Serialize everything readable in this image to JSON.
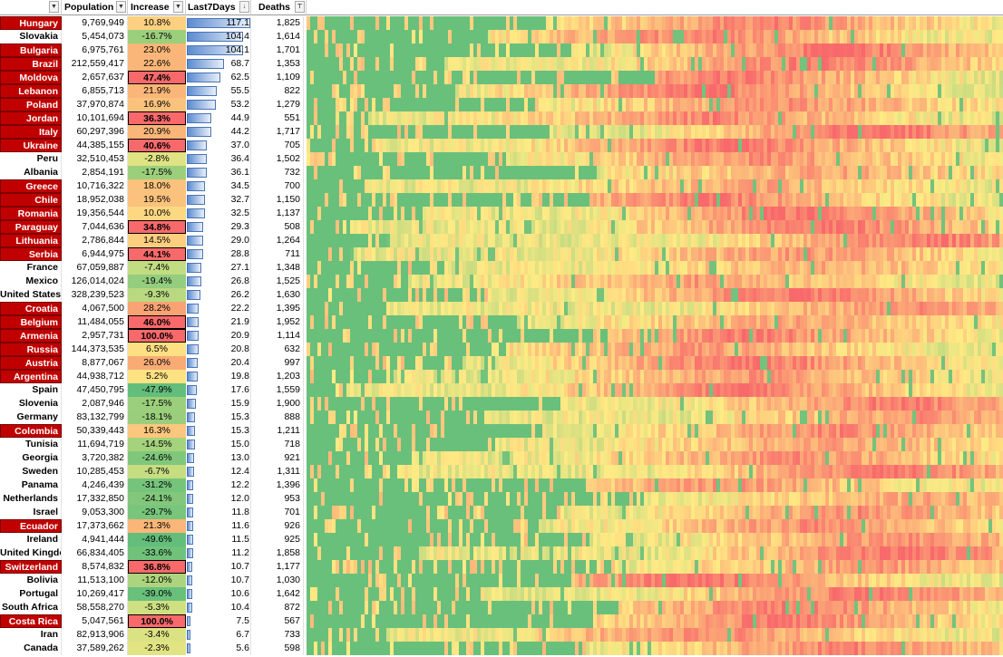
{
  "headers": {
    "country": "",
    "population": "Population",
    "increase": "Increase",
    "last7days": "Last7Days",
    "deaths": "Deaths"
  },
  "colors": {
    "highlight_red": "#c00000",
    "heat_green": "#63be7b",
    "heat_yellow": "#ffeb84",
    "heat_red": "#f8696b"
  },
  "rows": [
    {
      "country": "Hungary",
      "population": "9,769,949",
      "increase": "10.8%",
      "last7": "117.1",
      "deaths": "1,825",
      "highlight": true,
      "boxed": false,
      "inc_color": "#fbd080",
      "bar_frac": 1.0
    },
    {
      "country": "Slovakia",
      "population": "5,454,073",
      "increase": "-16.7%",
      "last7": "104.4",
      "deaths": "1,614",
      "highlight": false,
      "boxed": false,
      "inc_color": "#9ccf7c",
      "bar_frac": 0.89
    },
    {
      "country": "Bulgaria",
      "population": "6,975,761",
      "increase": "23.0%",
      "last7": "104.1",
      "deaths": "1,701",
      "highlight": true,
      "boxed": false,
      "inc_color": "#f9b678",
      "bar_frac": 0.89
    },
    {
      "country": "Brazil",
      "population": "212,559,417",
      "increase": "22.6%",
      "last7": "68.7",
      "deaths": "1,353",
      "highlight": true,
      "boxed": false,
      "inc_color": "#f9b678",
      "bar_frac": 0.59
    },
    {
      "country": "Moldova",
      "population": "2,657,637",
      "increase": "47.4%",
      "last7": "62.5",
      "deaths": "1,109",
      "highlight": true,
      "boxed": true,
      "inc_color": "#f8696b",
      "bar_frac": 0.53
    },
    {
      "country": "Lebanon",
      "population": "6,855,713",
      "increase": "21.9%",
      "last7": "55.5",
      "deaths": "822",
      "highlight": true,
      "boxed": false,
      "inc_color": "#f9b678",
      "bar_frac": 0.47
    },
    {
      "country": "Poland",
      "population": "37,970,874",
      "increase": "16.9%",
      "last7": "53.2",
      "deaths": "1,279",
      "highlight": true,
      "boxed": false,
      "inc_color": "#fac27c",
      "bar_frac": 0.45
    },
    {
      "country": "Jordan",
      "population": "10,101,694",
      "increase": "36.3%",
      "last7": "44.9",
      "deaths": "551",
      "highlight": true,
      "boxed": true,
      "inc_color": "#f8696b",
      "bar_frac": 0.38
    },
    {
      "country": "Italy",
      "population": "60,297,396",
      "increase": "20.9%",
      "last7": "44.2",
      "deaths": "1,717",
      "highlight": true,
      "boxed": false,
      "inc_color": "#f9b678",
      "bar_frac": 0.38
    },
    {
      "country": "Ukraine",
      "population": "44,385,155",
      "increase": "40.6%",
      "last7": "37.0",
      "deaths": "705",
      "highlight": true,
      "boxed": true,
      "inc_color": "#f8696b",
      "bar_frac": 0.32
    },
    {
      "country": "Peru",
      "population": "32,510,453",
      "increase": "-2.8%",
      "last7": "36.4",
      "deaths": "1,502",
      "highlight": false,
      "boxed": false,
      "inc_color": "#dfe383",
      "bar_frac": 0.31
    },
    {
      "country": "Albania",
      "population": "2,854,191",
      "increase": "-17.5%",
      "last7": "36.1",
      "deaths": "732",
      "highlight": false,
      "boxed": false,
      "inc_color": "#9ccf7c",
      "bar_frac": 0.31
    },
    {
      "country": "Greece",
      "population": "10,716,322",
      "increase": "18.0%",
      "last7": "34.5",
      "deaths": "700",
      "highlight": true,
      "boxed": false,
      "inc_color": "#fac27c",
      "bar_frac": 0.29
    },
    {
      "country": "Chile",
      "population": "18,952,038",
      "increase": "19.5%",
      "last7": "32.7",
      "deaths": "1,150",
      "highlight": true,
      "boxed": false,
      "inc_color": "#fac27c",
      "bar_frac": 0.28
    },
    {
      "country": "Romania",
      "population": "19,356,544",
      "increase": "10.0%",
      "last7": "32.5",
      "deaths": "1,137",
      "highlight": true,
      "boxed": false,
      "inc_color": "#fcd882",
      "bar_frac": 0.28
    },
    {
      "country": "Paraguay",
      "population": "7,044,636",
      "increase": "34.8%",
      "last7": "29.3",
      "deaths": "508",
      "highlight": true,
      "boxed": true,
      "inc_color": "#f8696b",
      "bar_frac": 0.25
    },
    {
      "country": "Lithuania",
      "population": "2,786,844",
      "increase": "14.5%",
      "last7": "29.0",
      "deaths": "1,264",
      "highlight": true,
      "boxed": false,
      "inc_color": "#fbce80",
      "bar_frac": 0.25
    },
    {
      "country": "Serbia",
      "population": "6,944,975",
      "increase": "44.1%",
      "last7": "28.8",
      "deaths": "711",
      "highlight": true,
      "boxed": true,
      "inc_color": "#f8696b",
      "bar_frac": 0.25
    },
    {
      "country": "France",
      "population": "67,059,887",
      "increase": "-7.4%",
      "last7": "27.1",
      "deaths": "1,348",
      "highlight": false,
      "boxed": false,
      "inc_color": "#c2dc81",
      "bar_frac": 0.23
    },
    {
      "country": "Mexico",
      "population": "126,014,024",
      "increase": "-19.4%",
      "last7": "26.8",
      "deaths": "1,525",
      "highlight": false,
      "boxed": false,
      "inc_color": "#94cd7e",
      "bar_frac": 0.23
    },
    {
      "country": "United States",
      "population": "328,239,523",
      "increase": "-9.3%",
      "last7": "26.2",
      "deaths": "1,630",
      "highlight": false,
      "boxed": false,
      "inc_color": "#b8d980",
      "bar_frac": 0.22
    },
    {
      "country": "Croatia",
      "population": "4,067,500",
      "increase": "28.2%",
      "last7": "22.2",
      "deaths": "1,395",
      "highlight": true,
      "boxed": false,
      "inc_color": "#f9a274",
      "bar_frac": 0.19
    },
    {
      "country": "Belgium",
      "population": "11,484,055",
      "increase": "46.0%",
      "last7": "21.9",
      "deaths": "1,952",
      "highlight": true,
      "boxed": true,
      "inc_color": "#f8696b",
      "bar_frac": 0.19
    },
    {
      "country": "Armenia",
      "population": "2,957,731",
      "increase": "100.0%",
      "last7": "20.9",
      "deaths": "1,114",
      "highlight": true,
      "boxed": true,
      "inc_color": "#f8696b",
      "bar_frac": 0.18
    },
    {
      "country": "Russia",
      "population": "144,373,535",
      "increase": "6.5%",
      "last7": "20.8",
      "deaths": "632",
      "highlight": true,
      "boxed": false,
      "inc_color": "#fde083",
      "bar_frac": 0.18
    },
    {
      "country": "Austria",
      "population": "8,877,067",
      "increase": "26.0%",
      "last7": "20.4",
      "deaths": "997",
      "highlight": true,
      "boxed": false,
      "inc_color": "#f9ab76",
      "bar_frac": 0.17
    },
    {
      "country": "Argentina",
      "population": "44,938,712",
      "increase": "5.2%",
      "last7": "19.8",
      "deaths": "1,203",
      "highlight": true,
      "boxed": false,
      "inc_color": "#fde283",
      "bar_frac": 0.17
    },
    {
      "country": "Spain",
      "population": "47,450,795",
      "increase": "-47.9%",
      "last7": "17.6",
      "deaths": "1,559",
      "highlight": false,
      "boxed": false,
      "inc_color": "#63be7b",
      "bar_frac": 0.15
    },
    {
      "country": "Slovenia",
      "population": "2,087,946",
      "increase": "-17.5%",
      "last7": "15.9",
      "deaths": "1,900",
      "highlight": false,
      "boxed": false,
      "inc_color": "#9ccf7c",
      "bar_frac": 0.14
    },
    {
      "country": "Germany",
      "population": "83,132,799",
      "increase": "-18.1%",
      "last7": "15.3",
      "deaths": "888",
      "highlight": false,
      "boxed": false,
      "inc_color": "#9ace7c",
      "bar_frac": 0.13
    },
    {
      "country": "Colombia",
      "population": "50,339,443",
      "increase": "16.3%",
      "last7": "15.3",
      "deaths": "1,211",
      "highlight": true,
      "boxed": false,
      "inc_color": "#fbc67d",
      "bar_frac": 0.13
    },
    {
      "country": "Tunisia",
      "population": "11,694,719",
      "increase": "-14.5%",
      "last7": "15.0",
      "deaths": "718",
      "highlight": false,
      "boxed": false,
      "inc_color": "#a5d27d",
      "bar_frac": 0.13
    },
    {
      "country": "Georgia",
      "population": "3,720,382",
      "increase": "-24.6%",
      "last7": "13.0",
      "deaths": "921",
      "highlight": false,
      "boxed": false,
      "inc_color": "#80c77c",
      "bar_frac": 0.11
    },
    {
      "country": "Sweden",
      "population": "10,285,453",
      "increase": "-6.7%",
      "last7": "12.4",
      "deaths": "1,311",
      "highlight": false,
      "boxed": false,
      "inc_color": "#c6dd81",
      "bar_frac": 0.11
    },
    {
      "country": "Panama",
      "population": "4,246,439",
      "increase": "-31.2%",
      "last7": "12.2",
      "deaths": "1,396",
      "highlight": false,
      "boxed": false,
      "inc_color": "#76c47c",
      "bar_frac": 0.1
    },
    {
      "country": "Netherlands",
      "population": "17,332,850",
      "increase": "-24.1%",
      "last7": "12.0",
      "deaths": "953",
      "highlight": false,
      "boxed": false,
      "inc_color": "#82c77c",
      "bar_frac": 0.1
    },
    {
      "country": "Israel",
      "population": "9,053,300",
      "increase": "-29.7%",
      "last7": "11.8",
      "deaths": "701",
      "highlight": false,
      "boxed": false,
      "inc_color": "#78c57c",
      "bar_frac": 0.1
    },
    {
      "country": "Ecuador",
      "population": "17,373,662",
      "increase": "21.3%",
      "last7": "11.6",
      "deaths": "926",
      "highlight": true,
      "boxed": false,
      "inc_color": "#f9b678",
      "bar_frac": 0.1
    },
    {
      "country": "Ireland",
      "population": "4,941,444",
      "increase": "-49.6%",
      "last7": "11.5",
      "deaths": "925",
      "highlight": false,
      "boxed": false,
      "inc_color": "#63be7b",
      "bar_frac": 0.1
    },
    {
      "country": "United Kingdom",
      "population": "66,834,405",
      "increase": "-33.6%",
      "last7": "11.2",
      "deaths": "1,858",
      "highlight": false,
      "boxed": false,
      "inc_color": "#70c27b",
      "bar_frac": 0.1
    },
    {
      "country": "Switzerland",
      "population": "8,574,832",
      "increase": "36.8%",
      "last7": "10.7",
      "deaths": "1,177",
      "highlight": true,
      "boxed": true,
      "inc_color": "#f8696b",
      "bar_frac": 0.09
    },
    {
      "country": "Bolivia",
      "population": "11,513,100",
      "increase": "-12.0%",
      "last7": "10.7",
      "deaths": "1,030",
      "highlight": false,
      "boxed": false,
      "inc_color": "#acd47e",
      "bar_frac": 0.09
    },
    {
      "country": "Portugal",
      "population": "10,269,417",
      "increase": "-39.0%",
      "last7": "10.6",
      "deaths": "1,642",
      "highlight": false,
      "boxed": false,
      "inc_color": "#69c07b",
      "bar_frac": 0.09
    },
    {
      "country": "South Africa",
      "population": "58,558,270",
      "increase": "-5.3%",
      "last7": "10.4",
      "deaths": "872",
      "highlight": false,
      "boxed": false,
      "inc_color": "#cfe082",
      "bar_frac": 0.09
    },
    {
      "country": "Costa Rica",
      "population": "5,047,561",
      "increase": "100.0%",
      "last7": "7.5",
      "deaths": "567",
      "highlight": true,
      "boxed": true,
      "inc_color": "#f8696b",
      "bar_frac": 0.06
    },
    {
      "country": "Iran",
      "population": "82,913,906",
      "increase": "-3.4%",
      "last7": "6.7",
      "deaths": "733",
      "highlight": false,
      "boxed": false,
      "inc_color": "#dbe283",
      "bar_frac": 0.06
    },
    {
      "country": "Canada",
      "population": "37,589,262",
      "increase": "-2.3%",
      "last7": "5.6",
      "deaths": "598",
      "highlight": false,
      "boxed": false,
      "inc_color": "#e2e483",
      "bar_frac": 0.05
    }
  ]
}
